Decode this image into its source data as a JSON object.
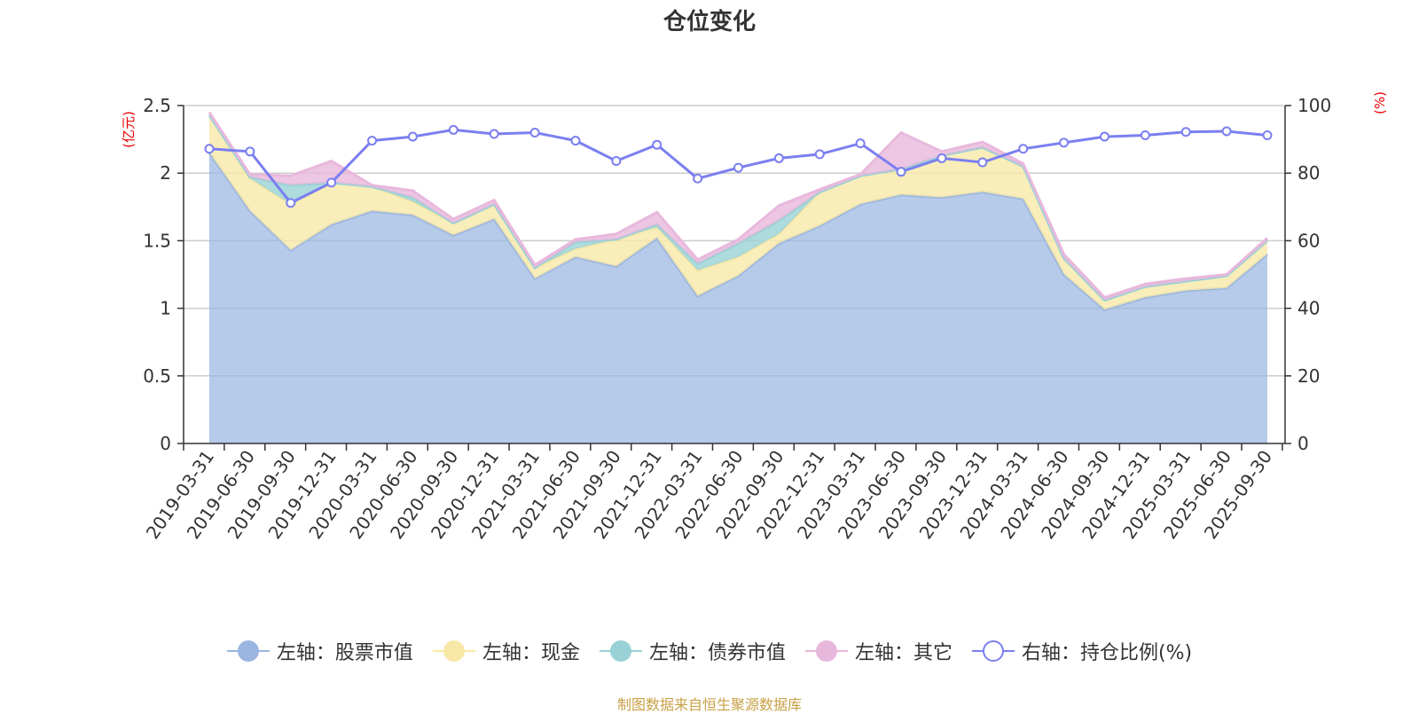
{
  "title": "仓位变化",
  "source": "制图数据来自恒生聚源数据库",
  "legend": [
    {
      "label": "左轴：股票市值",
      "color": "#9ab5e0",
      "hollow": false
    },
    {
      "label": "左轴：现金",
      "color": "#f8e8a8",
      "hollow": false
    },
    {
      "label": "左轴：债券市值",
      "color": "#98d2d6",
      "hollow": false
    },
    {
      "label": "左轴：其它",
      "color": "#e8b8dc",
      "hollow": false
    },
    {
      "label": "右轴：持仓比例(%)",
      "color": "#7b7ff0",
      "hollow": true
    }
  ],
  "chart_data": {
    "type": "area",
    "title": "仓位变化",
    "y_left_label": "亿元",
    "y_right_label": "%",
    "y_left_range": [
      0,
      2.5
    ],
    "y_right_range": [
      0,
      100
    ],
    "y_left_ticks": [
      "0",
      "0.5",
      "1",
      "1.5",
      "2",
      "2.5"
    ],
    "y_right_ticks": [
      "0",
      "20",
      "40",
      "60",
      "80",
      "100"
    ],
    "grid": true,
    "legend_position": "bottom",
    "x": [
      "2019-03-31",
      "2019-06-30",
      "2019-09-30",
      "2019-12-31",
      "2020-03-31",
      "2020-06-30",
      "2020-09-30",
      "2020-12-31",
      "2021-03-31",
      "2021-06-30",
      "2021-09-30",
      "2021-12-31",
      "2022-03-31",
      "2022-06-30",
      "2022-09-30",
      "2022-12-31",
      "2023-03-31",
      "2023-06-30",
      "2023-09-30",
      "2023-12-31",
      "2024-03-31",
      "2024-06-30",
      "2024-09-30",
      "2024-12-31",
      "2025-03-31",
      "2025-06-30",
      "2025-09-30"
    ],
    "series": [
      {
        "name": "左轴：股票市值",
        "axis": "left",
        "color": "#9ab5e0",
        "values": [
          2.15,
          1.72,
          1.43,
          1.62,
          1.72,
          1.69,
          1.54,
          1.66,
          1.22,
          1.38,
          1.31,
          1.52,
          1.09,
          1.24,
          1.48,
          1.61,
          1.77,
          1.84,
          1.82,
          1.86,
          1.81,
          1.25,
          0.99,
          1.08,
          1.13,
          1.15,
          1.4
        ]
      },
      {
        "name": "左轴：现金",
        "axis": "left",
        "color": "#f8e8a8",
        "values": [
          0.28,
          0.24,
          0.34,
          0.31,
          0.18,
          0.1,
          0.09,
          0.11,
          0.08,
          0.06,
          0.2,
          0.08,
          0.19,
          0.14,
          0.07,
          0.25,
          0.21,
          0.19,
          0.31,
          0.33,
          0.24,
          0.12,
          0.07,
          0.08,
          0.07,
          0.09,
          0.1
        ]
      },
      {
        "name": "左轴：债券市值",
        "axis": "left",
        "color": "#98d2d6",
        "values": [
          0,
          0.01,
          0.14,
          0,
          0,
          0.03,
          0,
          0,
          0,
          0.05,
          0,
          0.02,
          0.05,
          0.1,
          0.1,
          0,
          0,
          0,
          0,
          0,
          0,
          0,
          0,
          0,
          0,
          0,
          0
        ]
      },
      {
        "name": "左轴：其它",
        "axis": "left",
        "color": "#e8b8dc",
        "values": [
          0.02,
          0.02,
          0.07,
          0.16,
          0.01,
          0.05,
          0.03,
          0.03,
          0.02,
          0.02,
          0.04,
          0.09,
          0.03,
          0.03,
          0.11,
          0.02,
          0.01,
          0.27,
          0.03,
          0.04,
          0.02,
          0.03,
          0.02,
          0.02,
          0.02,
          0.01,
          0.02
        ]
      },
      {
        "name": "右轴：持仓比例(%)",
        "axis": "right",
        "color": "#7b7ff0",
        "values": [
          87.2,
          86.4,
          71.2,
          77.2,
          89.6,
          90.8,
          92.8,
          91.6,
          92.0,
          89.6,
          83.6,
          88.4,
          78.4,
          81.6,
          84.4,
          85.6,
          88.8,
          80.4,
          84.4,
          83.2,
          87.2,
          89.0,
          90.8,
          91.2,
          92.2,
          92.4,
          91.2
        ]
      }
    ]
  }
}
